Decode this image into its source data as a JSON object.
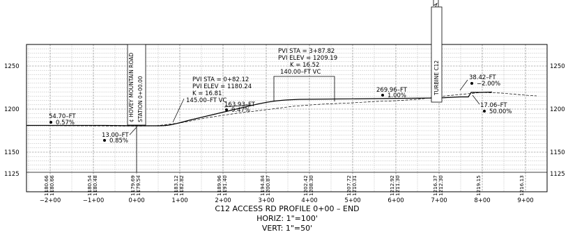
{
  "drawing": {
    "title": "C12 ACCESS RD PROFILE 0+00 – END",
    "horiz_scale": "HORIZ: 1\"=100'",
    "vert_scale": "VERT: 1\"=50'"
  },
  "axes": {
    "elevation_labels": [
      "1250",
      "1200",
      "1150",
      "1125"
    ],
    "station_labels": [
      "−2+00",
      "−1+00",
      "0+00",
      "1+00",
      "2+00",
      "3+00",
      "4+00",
      "5+00",
      "6+00",
      "7+00",
      "8+00",
      "9+00"
    ]
  },
  "elevation_readouts": [
    {
      "exist": "1180.66",
      "prop": "1180.66"
    },
    {
      "exist": "1180.54",
      "prop": "1180.48"
    },
    {
      "exist": "1179.69",
      "prop": "1179.54"
    },
    {
      "exist": "1183.12",
      "prop": "1182.82"
    },
    {
      "exist": "1189.96",
      "prop": "1191.40"
    },
    {
      "exist": "1194.84",
      "prop": "1200.87"
    },
    {
      "exist": "1202.42",
      "prop": "1208.30"
    },
    {
      "exist": "1207.72",
      "prop": "1210.31"
    },
    {
      "exist": "1212.92",
      "prop": "1211.30"
    },
    {
      "exist": "1216.37",
      "prop": "1212.30"
    },
    {
      "exist": "1219.15",
      "prop": ""
    },
    {
      "exist": "1216.13",
      "prop": ""
    }
  ],
  "annotations": {
    "road_label": "¢ HOVEY MOUNTAIN ROAD",
    "road_station": "STATION 0+00.00",
    "turbine_label": "TURBINE C12",
    "pvi1": [
      "PVI STA = 0+82.12",
      "PVI ELEV = 1180.24",
      "K = 16.81",
      "145.00–FT VC"
    ],
    "pvi2": [
      "PVI STA = 3+87.82",
      "PVI ELEV = 1209.19",
      "K = 16.52",
      "140.00–FT VC"
    ],
    "grades": [
      {
        "length": "54.70–FT",
        "grade": "0.57%"
      },
      {
        "length": "13.00–FT",
        "grade": "0.85%"
      },
      {
        "length": "163.93–FT",
        "grade": "9.47%"
      },
      {
        "length": "269.96–FT",
        "grade": "1.00%"
      },
      {
        "length": "38.42–FT",
        "grade": "−2.00%"
      },
      {
        "length": "17.06–FT",
        "grade": "50.00%"
      }
    ]
  }
}
